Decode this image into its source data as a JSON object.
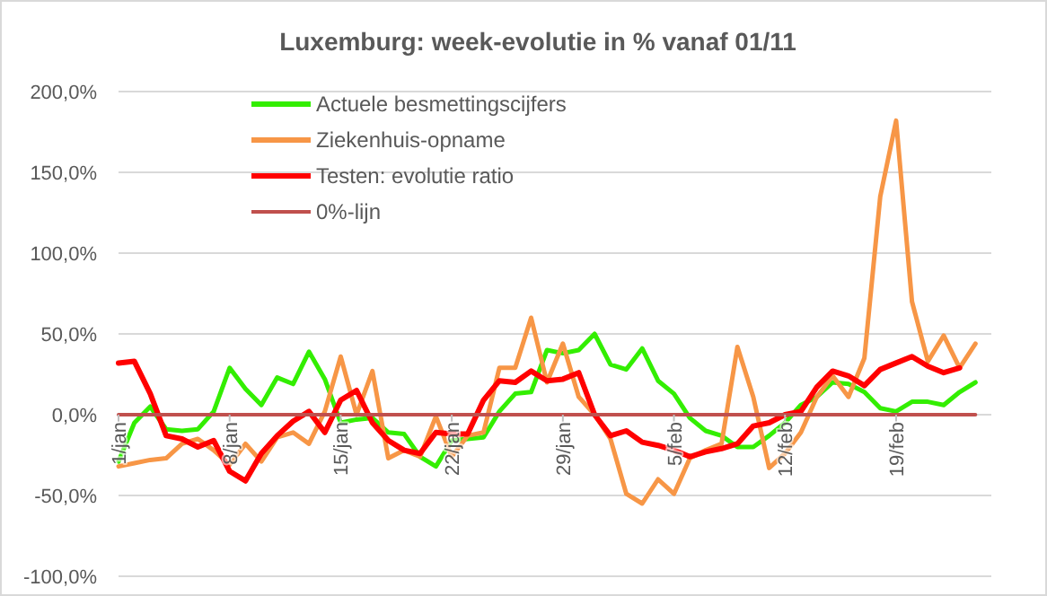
{
  "chart_data": {
    "type": "line",
    "title": "Luxemburg: week-evolutie in %  vanaf 01/11",
    "x": [
      "--01-01",
      "--01-02",
      "--01-03",
      "--01-04",
      "--01-05",
      "--01-06",
      "--01-07",
      "--01-08",
      "--01-09",
      "--01-10",
      "--01-11",
      "--01-12",
      "--01-13",
      "--01-14",
      "--01-15",
      "--01-16",
      "--01-17",
      "--01-18",
      "--01-19",
      "--01-20",
      "--01-21",
      "--01-22",
      "--01-23",
      "--01-24",
      "--01-25",
      "--01-26",
      "--01-27",
      "--01-28",
      "--01-29",
      "--01-30",
      "--01-31",
      "--02-01",
      "--02-02",
      "--02-03",
      "--02-04",
      "--02-05",
      "--02-06",
      "--02-07",
      "--02-08",
      "--02-09",
      "--02-10",
      "--02-11",
      "--02-12",
      "--02-13",
      "--02-14",
      "--02-15",
      "--02-16",
      "--02-17",
      "--02-18",
      "--02-19",
      "--02-20",
      "--02-21",
      "--02-22",
      "--02-23",
      "--02-24"
    ],
    "series": [
      {
        "name": "Actuele besmettingscijfers",
        "color": "#33ee00",
        "values": [
          -29,
          -5,
          5,
          -9,
          -10,
          -9,
          2,
          29,
          16,
          6,
          23,
          19,
          39,
          22,
          -5,
          -3,
          -2,
          -11,
          -12,
          -26,
          -32,
          -16,
          -15,
          -14,
          2,
          13,
          14,
          40,
          38,
          40,
          50,
          31,
          28,
          41,
          21,
          13,
          -2,
          -10,
          -13,
          -20,
          -20,
          -13,
          -5,
          6,
          11,
          20,
          19,
          14,
          4,
          2,
          8,
          8,
          6,
          14,
          20
        ]
      },
      {
        "name": "Ziekenhuis-opname",
        "color": "#f79646",
        "values": [
          -32,
          -30,
          -28,
          -27,
          -18,
          -15,
          -22,
          -31,
          -18,
          -29,
          -14,
          -11,
          -18,
          2,
          36,
          0,
          27,
          -27,
          -22,
          -26,
          -1,
          -26,
          -13,
          -11,
          29,
          29,
          60,
          20,
          44,
          11,
          0,
          -15,
          -49,
          -55,
          -40,
          -49,
          -27,
          -22,
          -18,
          42,
          11,
          -33,
          -24,
          -11,
          11,
          24,
          11,
          35,
          135,
          182,
          70,
          33,
          49,
          29,
          44
        ]
      },
      {
        "name": "Testen: evolutie ratio",
        "color": "#ff0000",
        "values": [
          32,
          33,
          13,
          -13,
          -15,
          -20,
          -16,
          -35,
          -41,
          -24,
          -13,
          -4,
          2,
          -11,
          9,
          15,
          -5,
          -16,
          -22,
          -24,
          -11,
          -12,
          -12,
          9,
          21,
          20,
          27,
          21,
          22,
          26,
          0,
          -13,
          -10,
          -17,
          -19,
          -22,
          -26,
          -23,
          -21,
          -18,
          -7,
          -5,
          0,
          2,
          17,
          27,
          24,
          18,
          28,
          32,
          36,
          30,
          26,
          29,
          null
        ]
      },
      {
        "name": "0%-lijn",
        "color": "#c0504d",
        "values": [
          0,
          0,
          0,
          0,
          0,
          0,
          0,
          0,
          0,
          0,
          0,
          0,
          0,
          0,
          0,
          0,
          0,
          0,
          0,
          0,
          0,
          0,
          0,
          0,
          0,
          0,
          0,
          0,
          0,
          0,
          0,
          0,
          0,
          0,
          0,
          0,
          0,
          0,
          0,
          0,
          0,
          0,
          0,
          0,
          0,
          0,
          0,
          0,
          0,
          0,
          0,
          0,
          0,
          0,
          0
        ]
      }
    ],
    "xlim": [
      "--01-01",
      "--02-25"
    ],
    "xticks": [
      {
        "value": "--01-01",
        "label": "1/jan"
      },
      {
        "value": "--01-08",
        "label": "8/jan"
      },
      {
        "value": "--01-15",
        "label": "15/jan"
      },
      {
        "value": "--01-22",
        "label": "22/jan"
      },
      {
        "value": "--01-29",
        "label": "29/jan"
      },
      {
        "value": "--02-05",
        "label": "5/feb"
      },
      {
        "value": "--02-12",
        "label": "12/feb"
      },
      {
        "value": "--02-19",
        "label": "19/feb"
      }
    ],
    "ylim": [
      -100,
      200
    ],
    "yticks": [
      {
        "value": -100,
        "label": "-100,0%"
      },
      {
        "value": -50,
        "label": "-50,0%"
      },
      {
        "value": 0,
        "label": "0,0%"
      },
      {
        "value": 50,
        "label": "50,0%"
      },
      {
        "value": 100,
        "label": "100,0%"
      },
      {
        "value": 150,
        "label": "150,0%"
      },
      {
        "value": 200,
        "label": "200,0%"
      }
    ],
    "grid": "y",
    "legend": "top",
    "marker": "none",
    "line_style": "solid"
  }
}
